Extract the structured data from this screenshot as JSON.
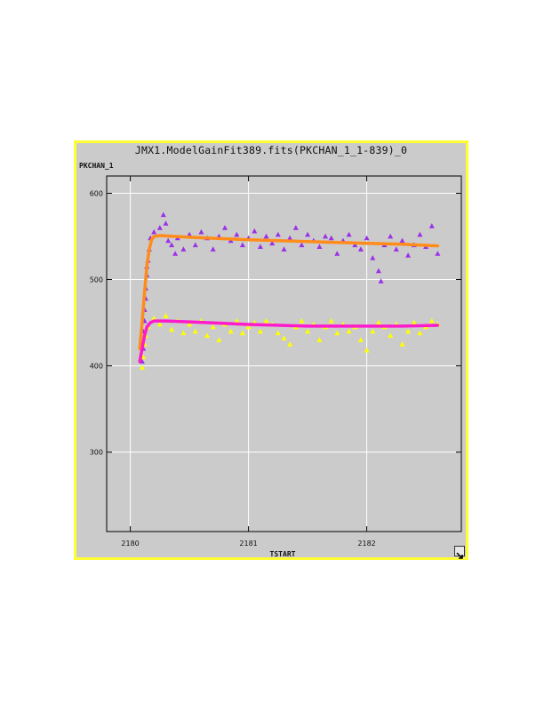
{
  "window": {
    "title": "JMX1.ModelGainFit389.fits(PKCHAN_1_1-839)_0"
  },
  "chart_data": {
    "type": "scatter",
    "title": "JMX1.ModelGainFit389.fits(PKCHAN_1_1-839)_0",
    "xlabel": "TSTART",
    "ylabel": "PKCHAN_1",
    "xlim": [
      2179.8,
      2182.8
    ],
    "ylim": [
      208,
      620
    ],
    "xticks": [
      2180,
      2181,
      2182
    ],
    "yticks": [
      300,
      400,
      500,
      600
    ],
    "grid": true,
    "series": [
      {
        "marker": "triangle",
        "color": "#9b30e8",
        "points": [
          [
            2180.1,
            405
          ],
          [
            2180.11,
            420
          ],
          [
            2180.11,
            440
          ],
          [
            2180.12,
            452
          ],
          [
            2180.12,
            465
          ],
          [
            2180.13,
            478
          ],
          [
            2180.13,
            490
          ],
          [
            2180.14,
            505
          ],
          [
            2180.14,
            515
          ],
          [
            2180.15,
            522
          ],
          [
            2180.16,
            535
          ],
          [
            2180.17,
            548
          ],
          [
            2180.2,
            555
          ],
          [
            2180.25,
            560
          ],
          [
            2180.28,
            575
          ],
          [
            2180.3,
            565
          ],
          [
            2180.32,
            545
          ],
          [
            2180.35,
            540
          ],
          [
            2180.38,
            530
          ],
          [
            2180.4,
            548
          ],
          [
            2180.45,
            535
          ],
          [
            2180.5,
            552
          ],
          [
            2180.55,
            540
          ],
          [
            2180.6,
            555
          ],
          [
            2180.65,
            548
          ],
          [
            2180.7,
            535
          ],
          [
            2180.75,
            550
          ],
          [
            2180.8,
            560
          ],
          [
            2180.85,
            545
          ],
          [
            2180.9,
            552
          ],
          [
            2180.95,
            540
          ],
          [
            2181.0,
            548
          ],
          [
            2181.05,
            556
          ],
          [
            2181.1,
            538
          ],
          [
            2181.15,
            550
          ],
          [
            2181.2,
            542
          ],
          [
            2181.25,
            552
          ],
          [
            2181.3,
            535
          ],
          [
            2181.35,
            548
          ],
          [
            2181.4,
            560
          ],
          [
            2181.45,
            540
          ],
          [
            2181.5,
            552
          ],
          [
            2181.55,
            545
          ],
          [
            2181.6,
            538
          ],
          [
            2181.65,
            550
          ],
          [
            2181.7,
            548
          ],
          [
            2181.75,
            530
          ],
          [
            2181.8,
            545
          ],
          [
            2181.85,
            552
          ],
          [
            2181.9,
            540
          ],
          [
            2181.95,
            535
          ],
          [
            2182.0,
            548
          ],
          [
            2182.05,
            525
          ],
          [
            2182.1,
            510
          ],
          [
            2182.12,
            498
          ],
          [
            2182.15,
            540
          ],
          [
            2182.2,
            550
          ],
          [
            2182.25,
            535
          ],
          [
            2182.3,
            545
          ],
          [
            2182.35,
            528
          ],
          [
            2182.4,
            540
          ],
          [
            2182.45,
            552
          ],
          [
            2182.5,
            538
          ],
          [
            2182.55,
            562
          ],
          [
            2182.6,
            530
          ]
        ]
      },
      {
        "marker": "triangle",
        "color": "#ffff00",
        "points": [
          [
            2180.1,
            398
          ],
          [
            2180.11,
            410
          ],
          [
            2180.12,
            425
          ],
          [
            2180.13,
            435
          ],
          [
            2180.15,
            445
          ],
          [
            2180.2,
            455
          ],
          [
            2180.25,
            448
          ],
          [
            2180.3,
            458
          ],
          [
            2180.35,
            442
          ],
          [
            2180.4,
            452
          ],
          [
            2180.45,
            438
          ],
          [
            2180.5,
            448
          ],
          [
            2180.55,
            440
          ],
          [
            2180.6,
            452
          ],
          [
            2180.65,
            435
          ],
          [
            2180.7,
            445
          ],
          [
            2180.75,
            430
          ],
          [
            2180.8,
            448
          ],
          [
            2180.85,
            440
          ],
          [
            2180.9,
            452
          ],
          [
            2180.95,
            438
          ],
          [
            2181.0,
            445
          ],
          [
            2181.05,
            450
          ],
          [
            2181.1,
            440
          ],
          [
            2181.15,
            452
          ],
          [
            2181.2,
            448
          ],
          [
            2181.25,
            438
          ],
          [
            2181.3,
            432
          ],
          [
            2181.35,
            425
          ],
          [
            2181.4,
            445
          ],
          [
            2181.45,
            452
          ],
          [
            2181.5,
            440
          ],
          [
            2181.55,
            448
          ],
          [
            2181.6,
            430
          ],
          [
            2181.65,
            445
          ],
          [
            2181.7,
            452
          ],
          [
            2181.75,
            438
          ],
          [
            2181.8,
            448
          ],
          [
            2181.85,
            440
          ],
          [
            2181.9,
            445
          ],
          [
            2181.95,
            430
          ],
          [
            2182.0,
            418
          ],
          [
            2182.05,
            440
          ],
          [
            2182.1,
            450
          ],
          [
            2182.15,
            445
          ],
          [
            2182.2,
            435
          ],
          [
            2182.25,
            448
          ],
          [
            2182.3,
            425
          ],
          [
            2182.35,
            440
          ],
          [
            2182.4,
            450
          ],
          [
            2182.45,
            438
          ],
          [
            2182.5,
            445
          ],
          [
            2182.55,
            452
          ],
          [
            2182.6,
            448
          ]
        ]
      },
      {
        "marker": "line",
        "color": "#ff8c1a",
        "points": [
          [
            2180.08,
            420
          ],
          [
            2180.1,
            450
          ],
          [
            2180.12,
            485
          ],
          [
            2180.14,
            515
          ],
          [
            2180.16,
            535
          ],
          [
            2180.18,
            546
          ],
          [
            2180.2,
            550
          ],
          [
            2180.25,
            551
          ],
          [
            2180.5,
            549
          ],
          [
            2181.0,
            546
          ],
          [
            2181.5,
            544
          ],
          [
            2182.0,
            542
          ],
          [
            2182.3,
            541
          ],
          [
            2182.6,
            539
          ]
        ]
      },
      {
        "marker": "line",
        "color": "#ff1acb",
        "points": [
          [
            2180.08,
            405
          ],
          [
            2180.1,
            420
          ],
          [
            2180.12,
            435
          ],
          [
            2180.14,
            445
          ],
          [
            2180.17,
            450
          ],
          [
            2180.2,
            452
          ],
          [
            2180.3,
            452
          ],
          [
            2180.5,
            451
          ],
          [
            2181.0,
            448
          ],
          [
            2181.5,
            446
          ],
          [
            2182.0,
            446
          ],
          [
            2182.3,
            446
          ],
          [
            2182.6,
            447
          ]
        ]
      }
    ]
  }
}
